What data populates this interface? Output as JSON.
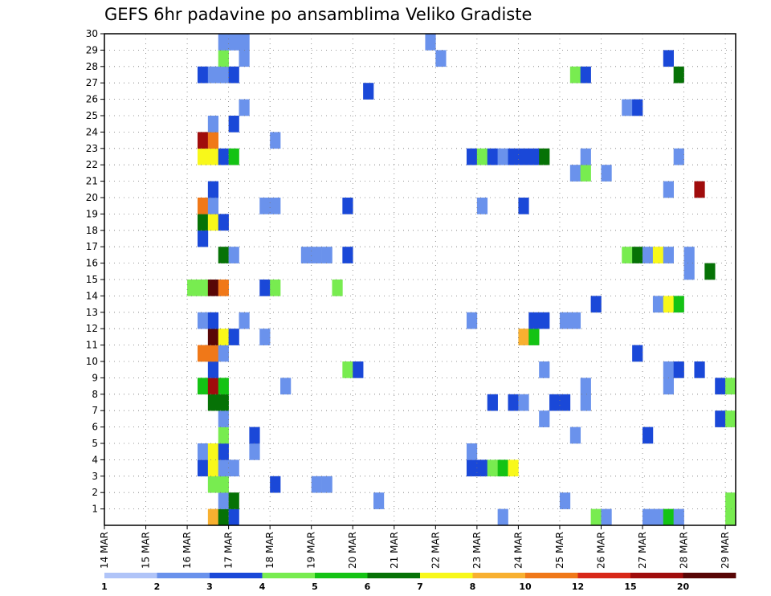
{
  "chart_data": {
    "type": "heatmap",
    "title": "GEFS 6hr padavine po ansamblima Veliko Gradiste",
    "x_ticks": [
      "14 MAR",
      "15 MAR",
      "16 MAR",
      "17 MAR",
      "18 MAR",
      "19 MAR",
      "20 MAR",
      "21 MAR",
      "22 MAR",
      "23 MAR",
      "24 MAR",
      "25 MAR",
      "26 MAR",
      "27 MAR",
      "28 MAR",
      "29 MAR"
    ],
    "y_ticks": [
      1,
      2,
      3,
      4,
      5,
      6,
      7,
      8,
      9,
      10,
      11,
      12,
      13,
      14,
      15,
      16,
      17,
      18,
      19,
      20,
      21,
      22,
      23,
      24,
      25,
      26,
      27,
      28,
      29,
      30
    ],
    "xlim": [
      0,
      61
    ],
    "ylim": [
      0,
      30
    ],
    "grid": true,
    "colorbar": {
      "labels": [
        "1",
        "2",
        "3",
        "4",
        "5",
        "6",
        "7",
        "8",
        "10",
        "12",
        "15",
        "20"
      ],
      "colors": [
        "#b0c4f8",
        "#6a92ec",
        "#1a48d8",
        "#78ec50",
        "#14c314",
        "#067206",
        "#f8f81a",
        "#f8b030",
        "#f07818",
        "#d82818",
        "#a00c0c",
        "#580606"
      ]
    },
    "cells": [
      [
        10,
        0,
        7
      ],
      [
        11,
        0,
        5
      ],
      [
        12,
        0,
        2
      ],
      [
        38,
        0,
        1
      ],
      [
        47,
        0,
        3
      ],
      [
        48,
        0,
        1
      ],
      [
        52,
        0,
        1
      ],
      [
        53,
        0,
        1
      ],
      [
        54,
        0,
        4
      ],
      [
        55,
        0,
        1
      ],
      [
        60,
        0,
        3
      ],
      [
        11,
        1,
        1
      ],
      [
        12,
        1,
        5
      ],
      [
        26,
        1,
        1
      ],
      [
        44,
        1,
        1
      ],
      [
        60,
        1,
        3
      ],
      [
        10,
        2,
        3
      ],
      [
        11,
        2,
        3
      ],
      [
        16,
        2,
        2
      ],
      [
        20,
        2,
        1
      ],
      [
        21,
        2,
        1
      ],
      [
        9,
        3,
        2
      ],
      [
        10,
        3,
        6
      ],
      [
        11,
        3,
        1
      ],
      [
        12,
        3,
        1
      ],
      [
        35,
        3,
        2
      ],
      [
        36,
        3,
        2
      ],
      [
        37,
        3,
        3
      ],
      [
        38,
        3,
        4
      ],
      [
        39,
        3,
        6
      ],
      [
        9,
        4,
        1
      ],
      [
        10,
        4,
        6
      ],
      [
        11,
        4,
        2
      ],
      [
        14,
        4,
        1
      ],
      [
        35,
        4,
        1
      ],
      [
        11,
        5,
        3
      ],
      [
        14,
        5,
        2
      ],
      [
        45,
        5,
        1
      ],
      [
        52,
        5,
        2
      ],
      [
        11,
        6,
        1
      ],
      [
        42,
        6,
        1
      ],
      [
        59,
        6,
        2
      ],
      [
        60,
        6,
        3
      ],
      [
        10,
        7,
        5
      ],
      [
        11,
        7,
        5
      ],
      [
        37,
        7,
        2
      ],
      [
        39,
        7,
        2
      ],
      [
        40,
        7,
        1
      ],
      [
        43,
        7,
        2
      ],
      [
        44,
        7,
        2
      ],
      [
        46,
        7,
        1
      ],
      [
        9,
        8,
        4
      ],
      [
        10,
        8,
        10
      ],
      [
        11,
        8,
        4
      ],
      [
        17,
        8,
        1
      ],
      [
        46,
        8,
        1
      ],
      [
        54,
        8,
        1
      ],
      [
        59,
        8,
        2
      ],
      [
        60,
        8,
        3
      ],
      [
        10,
        9,
        2
      ],
      [
        23,
        9,
        3
      ],
      [
        24,
        9,
        2
      ],
      [
        42,
        9,
        1
      ],
      [
        54,
        9,
        1
      ],
      [
        55,
        9,
        2
      ],
      [
        57,
        9,
        2
      ],
      [
        9,
        10,
        8
      ],
      [
        10,
        10,
        8
      ],
      [
        11,
        10,
        1
      ],
      [
        51,
        10,
        2
      ],
      [
        10,
        11,
        11
      ],
      [
        11,
        11,
        6
      ],
      [
        12,
        11,
        2
      ],
      [
        15,
        11,
        1
      ],
      [
        40,
        11,
        7
      ],
      [
        41,
        11,
        4
      ],
      [
        9,
        12,
        1
      ],
      [
        10,
        12,
        2
      ],
      [
        13,
        12,
        1
      ],
      [
        35,
        12,
        1
      ],
      [
        41,
        12,
        2
      ],
      [
        42,
        12,
        2
      ],
      [
        44,
        12,
        1
      ],
      [
        45,
        12,
        1
      ],
      [
        47,
        13,
        2
      ],
      [
        53,
        13,
        1
      ],
      [
        54,
        13,
        6
      ],
      [
        55,
        13,
        4
      ],
      [
        8,
        14,
        3
      ],
      [
        9,
        14,
        3
      ],
      [
        10,
        14,
        11
      ],
      [
        11,
        14,
        8
      ],
      [
        15,
        14,
        2
      ],
      [
        16,
        14,
        3
      ],
      [
        22,
        14,
        3
      ],
      [
        56,
        15,
        1
      ],
      [
        58,
        15,
        5
      ],
      [
        11,
        16,
        5
      ],
      [
        12,
        16,
        1
      ],
      [
        19,
        16,
        1
      ],
      [
        20,
        16,
        1
      ],
      [
        21,
        16,
        1
      ],
      [
        23,
        16,
        2
      ],
      [
        50,
        16,
        3
      ],
      [
        51,
        16,
        5
      ],
      [
        52,
        16,
        1
      ],
      [
        53,
        16,
        6
      ],
      [
        54,
        16,
        1
      ],
      [
        56,
        16,
        1
      ],
      [
        9,
        17,
        2
      ],
      [
        9,
        18,
        5
      ],
      [
        10,
        18,
        6
      ],
      [
        11,
        18,
        2
      ],
      [
        9,
        19,
        8
      ],
      [
        10,
        19,
        1
      ],
      [
        15,
        19,
        1
      ],
      [
        16,
        19,
        1
      ],
      [
        23,
        19,
        2
      ],
      [
        36,
        19,
        1
      ],
      [
        40,
        19,
        2
      ],
      [
        10,
        20,
        2
      ],
      [
        54,
        20,
        1
      ],
      [
        57,
        20,
        10
      ],
      [
        45,
        21,
        1
      ],
      [
        46,
        21,
        3
      ],
      [
        48,
        21,
        1
      ],
      [
        9,
        22,
        6
      ],
      [
        10,
        22,
        6
      ],
      [
        11,
        22,
        2
      ],
      [
        12,
        22,
        4
      ],
      [
        35,
        22,
        2
      ],
      [
        36,
        22,
        3
      ],
      [
        37,
        22,
        2
      ],
      [
        38,
        22,
        1
      ],
      [
        39,
        22,
        2
      ],
      [
        40,
        22,
        2
      ],
      [
        41,
        22,
        2
      ],
      [
        42,
        22,
        5
      ],
      [
        46,
        22,
        1
      ],
      [
        55,
        22,
        1
      ],
      [
        9,
        23,
        10
      ],
      [
        10,
        23,
        8
      ],
      [
        16,
        23,
        1
      ],
      [
        10,
        24,
        1
      ],
      [
        12,
        24,
        2
      ],
      [
        13,
        25,
        1
      ],
      [
        50,
        25,
        1
      ],
      [
        51,
        25,
        2
      ],
      [
        25,
        26,
        2
      ],
      [
        9,
        27,
        2
      ],
      [
        10,
        27,
        1
      ],
      [
        11,
        27,
        1
      ],
      [
        12,
        27,
        2
      ],
      [
        45,
        27,
        3
      ],
      [
        46,
        27,
        2
      ],
      [
        55,
        27,
        5
      ],
      [
        11,
        28,
        3
      ],
      [
        13,
        28,
        1
      ],
      [
        32,
        28,
        1
      ],
      [
        54,
        28,
        2
      ],
      [
        11,
        29,
        1
      ],
      [
        12,
        29,
        1
      ],
      [
        13,
        29,
        1
      ],
      [
        31,
        29,
        1
      ]
    ]
  }
}
